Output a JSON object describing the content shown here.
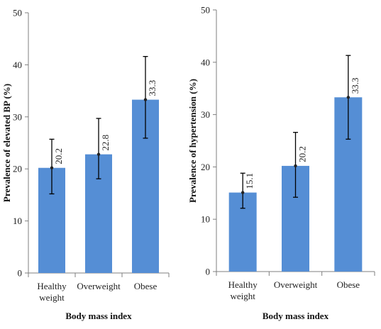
{
  "chart_data": [
    {
      "type": "bar",
      "categories": [
        [
          "Healthy",
          "weight"
        ],
        [
          "Overweight"
        ],
        [
          "Obese"
        ]
      ],
      "values": [
        20.2,
        22.8,
        33.3
      ],
      "value_labels": [
        "20.2",
        "22.8",
        "33.3"
      ],
      "error_low": [
        15.2,
        18.1,
        25.9
      ],
      "error_high": [
        25.7,
        29.7,
        41.6
      ],
      "ylabel": "Prevalence of elevated BP (%)",
      "xlabel": "Body mass index",
      "ylim": [
        0,
        50
      ],
      "yticks": [
        0,
        10,
        20,
        30,
        40,
        50
      ],
      "bar_color": "#558ed5",
      "grid": false,
      "legend": "none"
    },
    {
      "type": "bar",
      "categories": [
        [
          "Healthy",
          "weight"
        ],
        [
          "Overweight"
        ],
        [
          "Obese"
        ]
      ],
      "values": [
        15.1,
        20.2,
        33.3
      ],
      "value_labels": [
        "15.1",
        "20.2",
        "33.3"
      ],
      "error_low": [
        12.1,
        14.2,
        25.3
      ],
      "error_high": [
        18.8,
        26.6,
        41.3
      ],
      "ylabel": "Prevalence of hypertension  (%)",
      "xlabel": "Body mass index",
      "ylim": [
        0,
        50
      ],
      "yticks": [
        0,
        10,
        20,
        30,
        40,
        50
      ],
      "bar_color": "#558ed5",
      "grid": false,
      "legend": "none"
    }
  ]
}
